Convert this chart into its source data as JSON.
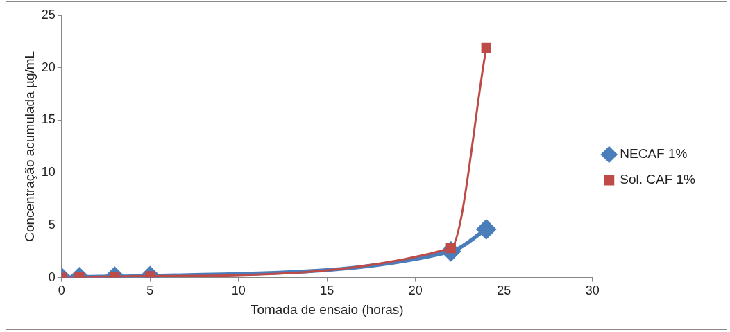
{
  "chart_data": {
    "type": "line",
    "xlabel": "Tomada de ensaio (horas)",
    "ylabel": "Concentração acumulada µg/mL",
    "xlim": [
      0,
      30
    ],
    "xticks": [
      0,
      5,
      10,
      15,
      20,
      25,
      30
    ],
    "ylim": [
      0,
      25
    ],
    "yticks": [
      0,
      5,
      10,
      15,
      20,
      25
    ],
    "grid": false,
    "legend": "right",
    "line_style": "solid",
    "series": [
      {
        "name": "NECAF 1%",
        "color": "#4a7ebb",
        "marker": "diamond",
        "x": [
          0,
          1,
          3,
          5,
          22,
          24
        ],
        "values": [
          0,
          0.05,
          0.1,
          0.15,
          2.5,
          4.6
        ]
      },
      {
        "name": "Sol. CAF 1%",
        "color": "#be4b48",
        "marker": "square",
        "x": [
          0,
          1,
          3,
          5,
          22,
          24
        ],
        "values": [
          0,
          0.05,
          0.1,
          0.15,
          2.8,
          21.9
        ]
      }
    ]
  }
}
